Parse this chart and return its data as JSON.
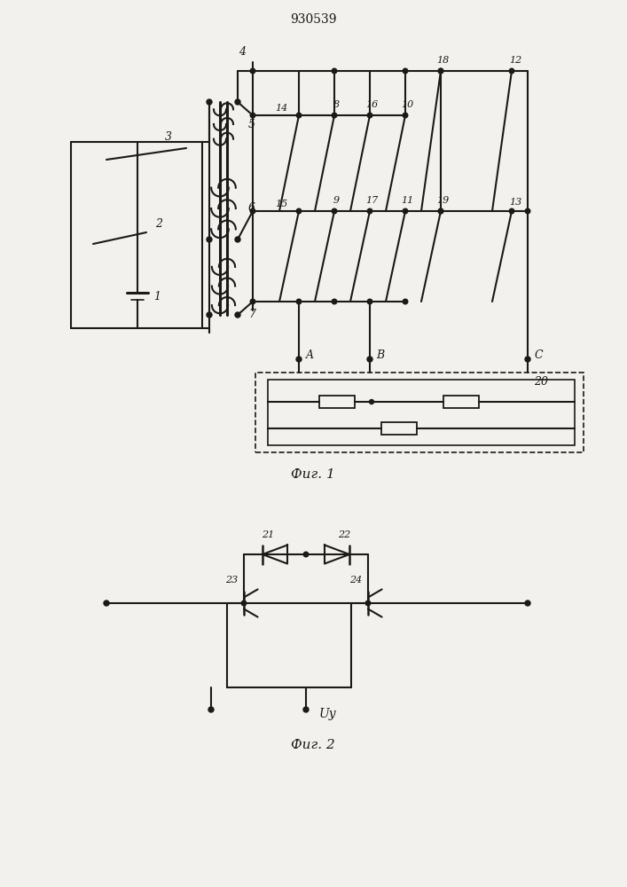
{
  "title": "930539",
  "fig1_caption": "Фиг. 1",
  "fig2_caption": "Фиг. 2",
  "bg_color": "#f2f1ed",
  "line_color": "#1a1a1a",
  "lw": 1.5
}
